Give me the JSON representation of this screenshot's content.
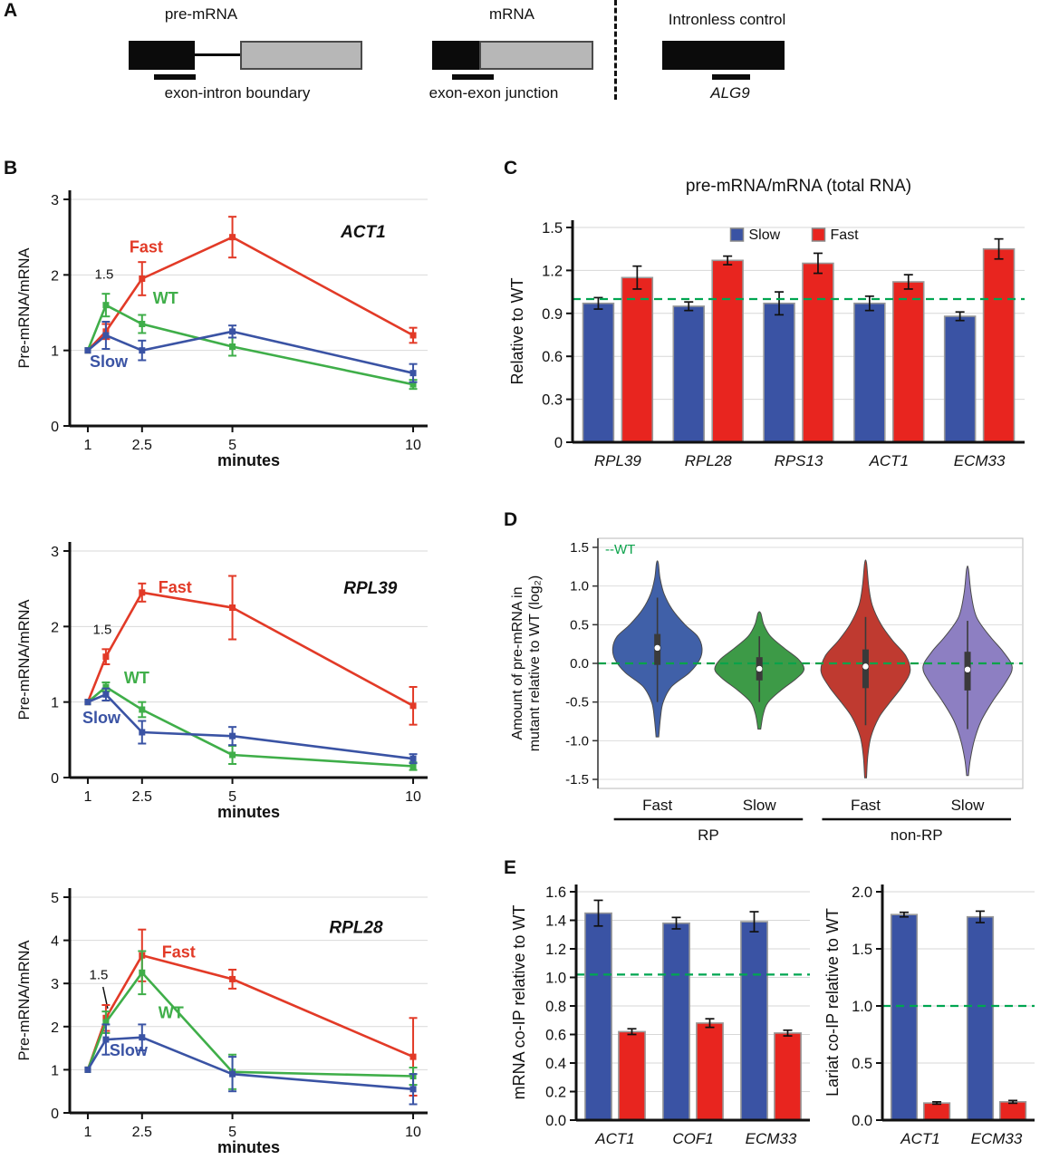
{
  "labels": {
    "A": "A",
    "B": "B",
    "C": "C",
    "D": "D",
    "E": "E"
  },
  "panel_a": {
    "premrna_title": "pre-mRNA",
    "mrna_title": "mRNA",
    "intronless_title": "Intronless control",
    "exon_intron_label": "exon-intron boundary",
    "exon_exon_label": "exon-exon junction",
    "alg9_label": "ALG9"
  },
  "colors": {
    "fast_red": "#e23a27",
    "wt_green": "#3fae49",
    "slow_blue": "#3a53a4",
    "ref_green": "#00a651"
  },
  "chart_data": [
    {
      "id": "act1",
      "type": "line",
      "title": "ACT1",
      "xlabel": "minutes",
      "ylabel": "Pre-mRNA/mRNA",
      "x": [
        1,
        1.5,
        2.5,
        5,
        10
      ],
      "xtick_vals": [
        1,
        2.5,
        5,
        10
      ],
      "xticks": [
        "1",
        "2.5",
        "5",
        "10"
      ],
      "xlim": [
        0.5,
        10.4
      ],
      "ylim": [
        0,
        3
      ],
      "ytick_vals": [
        0,
        1,
        2,
        3
      ],
      "yticks": [
        "0",
        "1",
        "2",
        "3"
      ],
      "grid": true,
      "title_pos": [
        0.82,
        0.2
      ],
      "annotation": {
        "text": "1.5",
        "x": 1.45,
        "y": 1.95
      },
      "series": [
        {
          "name": "Fast",
          "color": "#e23a27",
          "values": [
            1,
            1.25,
            1.95,
            2.5,
            1.2
          ],
          "err": [
            0.02,
            0.1,
            0.22,
            0.27,
            0.1
          ],
          "label_pos": [
            2.15,
            2.3
          ]
        },
        {
          "name": "WT",
          "color": "#3fae49",
          "values": [
            1,
            1.6,
            1.35,
            1.05,
            0.55
          ],
          "err": [
            0.02,
            0.15,
            0.12,
            0.12,
            0.06
          ],
          "label_pos": [
            2.8,
            1.62
          ]
        },
        {
          "name": "Slow",
          "color": "#3a53a4",
          "values": [
            1,
            1.2,
            1.0,
            1.25,
            0.7
          ],
          "err": [
            0.02,
            0.18,
            0.13,
            0.08,
            0.12
          ],
          "label_pos": [
            1.05,
            0.78
          ]
        }
      ]
    },
    {
      "id": "rpl39",
      "type": "line",
      "title": "RPL39",
      "xlabel": "minutes",
      "ylabel": "Pre-mRNA/mRNA",
      "x": [
        1,
        1.5,
        2.5,
        5,
        10
      ],
      "xtick_vals": [
        1,
        2.5,
        5,
        10
      ],
      "xticks": [
        "1",
        "2.5",
        "5",
        "10"
      ],
      "xlim": [
        0.5,
        10.4
      ],
      "ylim": [
        0,
        3
      ],
      "ytick_vals": [
        0,
        1,
        2,
        3
      ],
      "yticks": [
        "0",
        "1",
        "2",
        "3"
      ],
      "grid": true,
      "title_pos": [
        0.84,
        0.22
      ],
      "annotation": {
        "text": "1.5",
        "x": 1.4,
        "y": 1.9
      },
      "series": [
        {
          "name": "Fast",
          "color": "#e23a27",
          "values": [
            1,
            1.6,
            2.45,
            2.25,
            0.95
          ],
          "err": [
            0.02,
            0.1,
            0.12,
            0.42,
            0.25
          ],
          "label_pos": [
            2.95,
            2.45
          ]
        },
        {
          "name": "WT",
          "color": "#3fae49",
          "values": [
            1,
            1.2,
            0.9,
            0.3,
            0.15
          ],
          "err": [
            0.02,
            0.06,
            0.1,
            0.12,
            0.05
          ],
          "label_pos": [
            2.0,
            1.25
          ]
        },
        {
          "name": "Slow",
          "color": "#3a53a4",
          "values": [
            1,
            1.1,
            0.6,
            0.55,
            0.25
          ],
          "err": [
            0.02,
            0.08,
            0.15,
            0.12,
            0.06
          ],
          "label_pos": [
            0.85,
            0.72
          ]
        }
      ]
    },
    {
      "id": "rpl28",
      "type": "line",
      "title": "RPL28",
      "xlabel": "minutes",
      "ylabel": "Pre-mRNA/mRNA",
      "x": [
        1,
        1.5,
        2.5,
        5,
        10
      ],
      "xtick_vals": [
        1,
        2.5,
        5,
        10
      ],
      "xticks": [
        "1",
        "2.5",
        "5",
        "10"
      ],
      "xlim": [
        0.5,
        10.4
      ],
      "ylim": [
        0,
        5
      ],
      "ytick_vals": [
        0,
        1,
        2,
        3,
        4,
        5
      ],
      "yticks": [
        "0",
        "1",
        "2",
        "3",
        "4",
        "5"
      ],
      "grid": true,
      "title_pos": [
        0.8,
        0.2
      ],
      "annotation": {
        "text": "1.5",
        "x": 1.3,
        "y": 3.1,
        "leader": [
          1.42,
          2.92,
          1.55,
          2.42
        ]
      },
      "series": [
        {
          "name": "Fast",
          "color": "#e23a27",
          "values": [
            1,
            2.2,
            3.65,
            3.1,
            1.3
          ],
          "err": [
            0.02,
            0.3,
            0.6,
            0.22,
            0.9
          ],
          "label_pos": [
            3.05,
            3.6
          ]
        },
        {
          "name": "WT",
          "color": "#3fae49",
          "values": [
            1,
            2.1,
            3.25,
            0.95,
            0.85
          ],
          "err": [
            0.02,
            0.25,
            0.5,
            0.4,
            0.2
          ],
          "label_pos": [
            2.95,
            2.2
          ]
        },
        {
          "name": "Slow",
          "color": "#3a53a4",
          "values": [
            1,
            1.7,
            1.75,
            0.9,
            0.55
          ],
          "err": [
            0.02,
            0.35,
            0.3,
            0.4,
            0.35
          ],
          "label_pos": [
            1.6,
            1.32
          ]
        }
      ]
    },
    {
      "id": "panelC",
      "type": "bar",
      "title": "pre-mRNA/mRNA (total RNA)",
      "ylabel": "Relative to WT",
      "categories": [
        "RPL39",
        "RPL28",
        "RPS13",
        "ACT1",
        "ECM33"
      ],
      "italic_categories": true,
      "ylim": [
        0,
        1.5
      ],
      "ytick_vals": [
        0,
        0.3,
        0.6,
        0.9,
        1.2,
        1.5
      ],
      "yticks": [
        "0",
        "0.3",
        "0.6",
        "0.9",
        "1.2",
        "1.5"
      ],
      "refline": 1.0,
      "legend": [
        "Slow",
        "Fast"
      ],
      "series": [
        {
          "name": "Slow",
          "color": "#3a53a4",
          "values": [
            0.97,
            0.95,
            0.97,
            0.97,
            0.88
          ],
          "err": [
            0.04,
            0.03,
            0.08,
            0.05,
            0.03
          ]
        },
        {
          "name": "Fast",
          "color": "#e8251f",
          "values": [
            1.15,
            1.27,
            1.25,
            1.12,
            1.35
          ],
          "err": [
            0.08,
            0.03,
            0.07,
            0.05,
            0.07
          ]
        }
      ]
    },
    {
      "id": "panelD",
      "type": "violin",
      "ylabel_lines": [
        "Amount of pre-mRNA in",
        "mutant relative to WT (log₂)"
      ],
      "ylim": [
        -1.5,
        1.5
      ],
      "ytick_vals": [
        -1.5,
        -1.0,
        -0.5,
        0.0,
        0.5,
        1.0,
        1.5
      ],
      "yticks": [
        "-1.5",
        "-1.0",
        "-0.5",
        "0.0",
        "0.5",
        "1.0",
        "1.5"
      ],
      "refline": 0,
      "ref_label": "--WT",
      "groups": [
        {
          "label": "RP",
          "span": [
            0,
            1
          ]
        },
        {
          "label": "non-RP",
          "span": [
            2,
            3
          ]
        }
      ],
      "violins": [
        {
          "name": "Fast",
          "color": "#4060a8",
          "cx": 0.14,
          "profile": [
            [
              -0.95,
              0.03
            ],
            [
              -0.7,
              0.07
            ],
            [
              -0.5,
              0.13
            ],
            [
              -0.3,
              0.32
            ],
            [
              -0.12,
              0.72
            ],
            [
              0.05,
              0.95
            ],
            [
              0.2,
              1.0
            ],
            [
              0.35,
              0.9
            ],
            [
              0.5,
              0.62
            ],
            [
              0.7,
              0.33
            ],
            [
              0.9,
              0.15
            ],
            [
              1.1,
              0.06
            ],
            [
              1.3,
              0.02
            ]
          ],
          "box": [
            -0.02,
            0.38
          ],
          "median": 0.2,
          "whisker": [
            -0.5,
            0.85
          ]
        },
        {
          "name": "Slow",
          "color": "#3d9a47",
          "cx": 0.38,
          "profile": [
            [
              -0.85,
              0.03
            ],
            [
              -0.65,
              0.09
            ],
            [
              -0.5,
              0.2
            ],
            [
              -0.35,
              0.48
            ],
            [
              -0.2,
              0.82
            ],
            [
              -0.08,
              1.0
            ],
            [
              0.05,
              0.88
            ],
            [
              0.2,
              0.55
            ],
            [
              0.35,
              0.25
            ],
            [
              0.5,
              0.1
            ],
            [
              0.65,
              0.03
            ]
          ],
          "box": [
            -0.22,
            0.08
          ],
          "median": -0.07,
          "whisker": [
            -0.5,
            0.35
          ]
        },
        {
          "name": "Fast",
          "color": "#bf3a30",
          "cx": 0.63,
          "profile": [
            [
              -1.48,
              0.02
            ],
            [
              -1.2,
              0.05
            ],
            [
              -0.95,
              0.12
            ],
            [
              -0.7,
              0.3
            ],
            [
              -0.5,
              0.55
            ],
            [
              -0.3,
              0.82
            ],
            [
              -0.1,
              1.0
            ],
            [
              0.1,
              0.9
            ],
            [
              0.3,
              0.6
            ],
            [
              0.5,
              0.35
            ],
            [
              0.75,
              0.15
            ],
            [
              1.0,
              0.07
            ],
            [
              1.3,
              0.02
            ]
          ],
          "box": [
            -0.32,
            0.18
          ],
          "median": -0.04,
          "whisker": [
            -0.8,
            0.6
          ]
        },
        {
          "name": "Slow",
          "color": "#8d7fc2",
          "cx": 0.87,
          "profile": [
            [
              -1.45,
              0.02
            ],
            [
              -1.25,
              0.06
            ],
            [
              -1.0,
              0.15
            ],
            [
              -0.75,
              0.3
            ],
            [
              -0.5,
              0.55
            ],
            [
              -0.25,
              0.85
            ],
            [
              -0.05,
              1.0
            ],
            [
              0.15,
              0.8
            ],
            [
              0.35,
              0.5
            ],
            [
              0.6,
              0.2
            ],
            [
              0.9,
              0.08
            ],
            [
              1.22,
              0.02
            ]
          ],
          "box": [
            -0.35,
            0.15
          ],
          "median": -0.08,
          "whisker": [
            -0.85,
            0.55
          ]
        }
      ]
    },
    {
      "id": "eLeft",
      "type": "bar",
      "ylabel": "mRNA co-IP relative to WT",
      "categories": [
        "ACT1",
        "COF1",
        "ECM33"
      ],
      "italic_categories": true,
      "ylim": [
        0,
        1.6
      ],
      "ytick_vals": [
        0,
        0.2,
        0.4,
        0.6,
        0.8,
        1.0,
        1.2,
        1.4,
        1.6
      ],
      "yticks": [
        "0.0",
        "0.2",
        "0.4",
        "0.6",
        "0.8",
        "1.0",
        "1.2",
        "1.4",
        "1.6"
      ],
      "refline": 1.02,
      "series": [
        {
          "name": "blue",
          "color": "#3a53a4",
          "values": [
            1.45,
            1.38,
            1.39
          ],
          "err": [
            0.09,
            0.04,
            0.07
          ]
        },
        {
          "name": "red",
          "color": "#e8251f",
          "values": [
            0.62,
            0.68,
            0.61
          ],
          "err": [
            0.02,
            0.03,
            0.02
          ]
        }
      ]
    },
    {
      "id": "eRight",
      "type": "bar",
      "ylabel": "Lariat co-IP relative to WT",
      "categories": [
        "ACT1",
        "ECM33"
      ],
      "italic_categories": true,
      "ylim": [
        0,
        2.0
      ],
      "ytick_vals": [
        0,
        0.5,
        1.0,
        1.5,
        2.0
      ],
      "yticks": [
        "0.0",
        "0.5",
        "1.0",
        "1.5",
        "2.0"
      ],
      "refline": 1.0,
      "series": [
        {
          "name": "blue",
          "color": "#3a53a4",
          "values": [
            1.8,
            1.78
          ],
          "err": [
            0.02,
            0.05
          ]
        },
        {
          "name": "red",
          "color": "#e8251f",
          "values": [
            0.15,
            0.16
          ],
          "err": [
            0.01,
            0.012
          ]
        }
      ]
    }
  ]
}
